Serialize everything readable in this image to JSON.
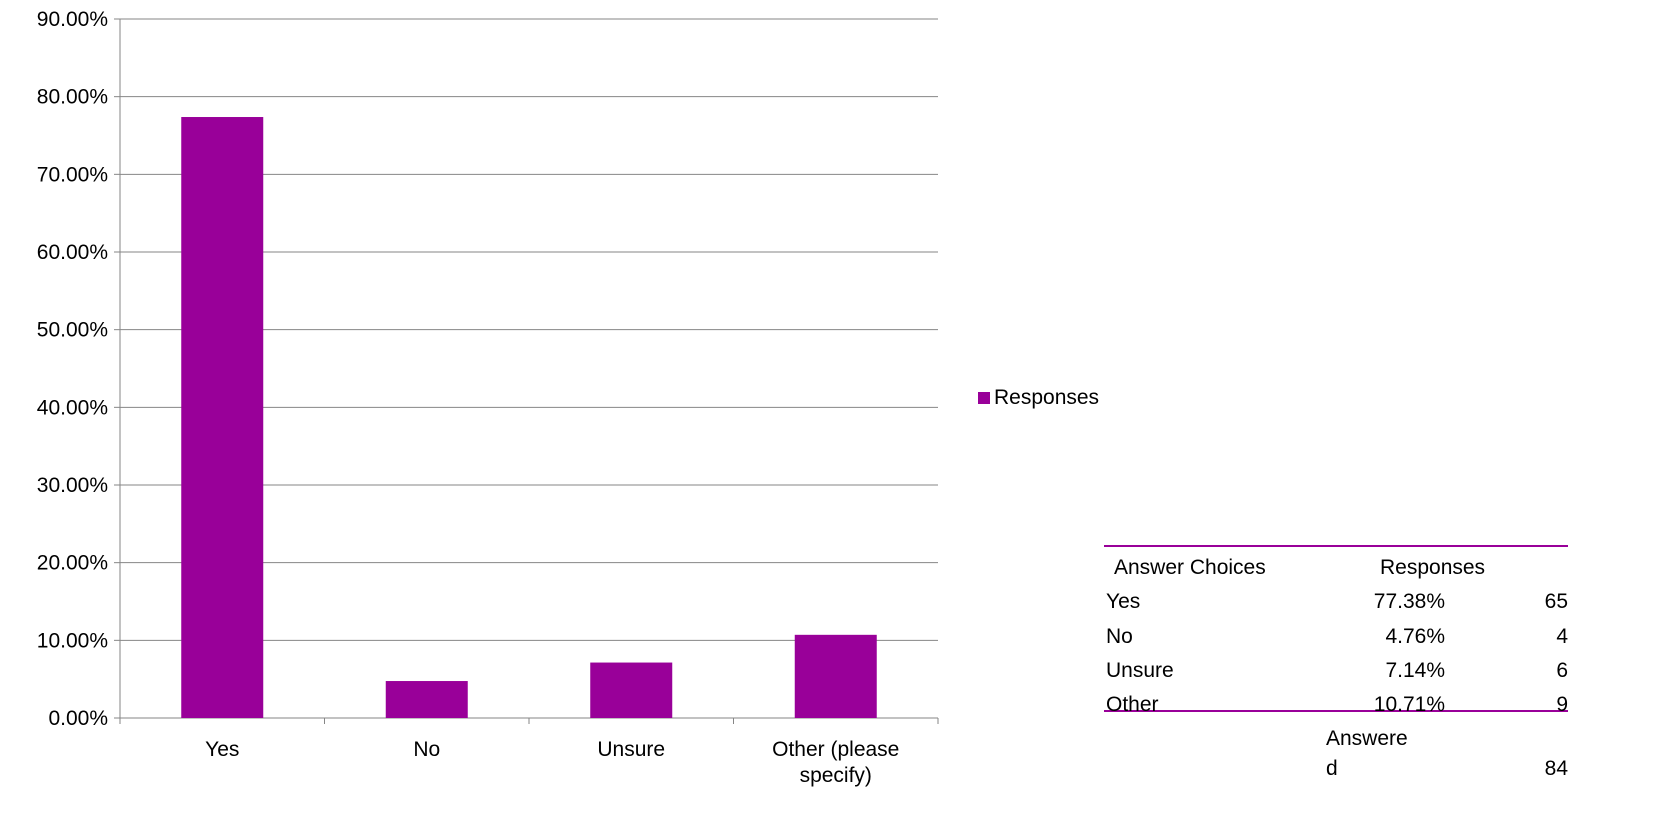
{
  "chart_data": {
    "type": "bar",
    "categories": [
      "Yes",
      "No",
      "Unsure",
      "Other (please specify)"
    ],
    "category_lines": [
      [
        "Yes"
      ],
      [
        "No"
      ],
      [
        "Unsure"
      ],
      [
        "Other (please",
        "specify)"
      ]
    ],
    "series": [
      {
        "name": "Responses",
        "values": [
          77.38,
          4.76,
          7.14,
          10.71
        ]
      }
    ],
    "y_unit": "%",
    "ylim": [
      0,
      90
    ],
    "yticks": [
      0,
      10,
      20,
      30,
      40,
      50,
      60,
      70,
      80,
      90
    ],
    "ytick_labels": [
      "0.00%",
      "10.00%",
      "20.00%",
      "30.00%",
      "40.00%",
      "50.00%",
      "60.00%",
      "70.00%",
      "80.00%",
      "90.00%"
    ],
    "grid": true,
    "legend_position": "right",
    "bar_color": "#990099",
    "gridline_color": "#868686"
  },
  "summary_table": {
    "header": {
      "choice": "Answer Choices",
      "responses": "Responses"
    },
    "rows": [
      {
        "choice": "Yes",
        "percent": "77.38%",
        "count": "65"
      },
      {
        "choice": "No",
        "percent": "4.76%",
        "count": "4"
      },
      {
        "choice": "Unsure",
        "percent": "7.14%",
        "count": "6"
      },
      {
        "choice": "Other",
        "percent": "10.71%",
        "count": "9"
      }
    ],
    "answered_label_part1": "Answere",
    "answered_label_part2": "d",
    "answered_count": "84",
    "border_color": "#990099"
  }
}
